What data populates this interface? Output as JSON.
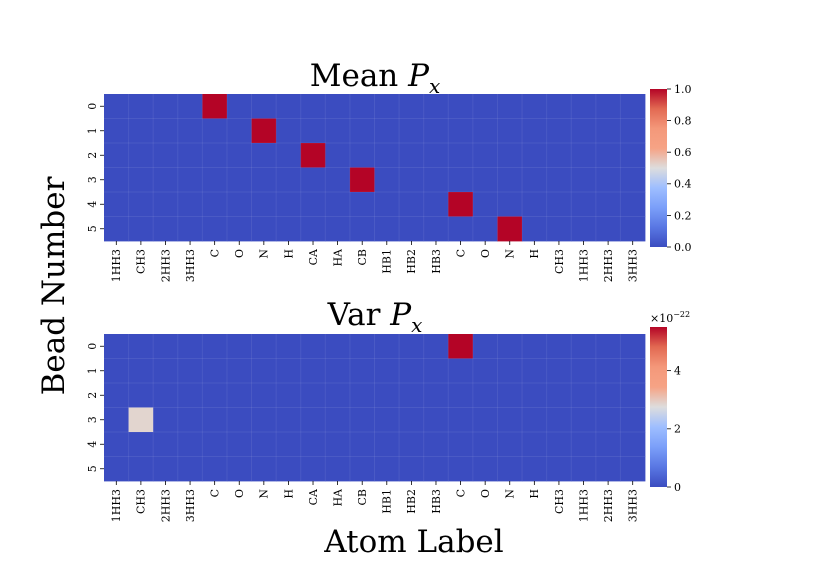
{
  "figure": {
    "ylabel": "Bead Number",
    "xlabel": "Atom Label"
  },
  "chart_data": [
    {
      "type": "heatmap",
      "title": "Mean ",
      "title_symbol": "P",
      "title_subscript": "x",
      "colormap": "coolwarm",
      "x_tick_labels": [
        "1HH3",
        "CH3",
        "2HH3",
        "3HH3",
        "C",
        "O",
        "N",
        "H",
        "CA",
        "HA",
        "CB",
        "HB1",
        "HB2",
        "HB3",
        "C",
        "O",
        "N",
        "H",
        "CH3",
        "1HH3",
        "2HH3",
        "3HH3"
      ],
      "y_tick_labels": [
        "0",
        "1",
        "2",
        "3",
        "4",
        "5"
      ],
      "vmin": 0.0,
      "vmax": 1.0,
      "colorbar_ticks": [
        "0.0",
        "0.2",
        "0.4",
        "0.6",
        "0.8",
        "1.0"
      ],
      "colorbar_tick_values": [
        0.0,
        0.2,
        0.4,
        0.6,
        0.8,
        1.0
      ],
      "colorbar_exponent": "",
      "cells": [
        {
          "row": 0,
          "col": 4,
          "value": 1.0
        },
        {
          "row": 1,
          "col": 6,
          "value": 1.0
        },
        {
          "row": 2,
          "col": 8,
          "value": 1.0
        },
        {
          "row": 3,
          "col": 10,
          "value": 1.0
        },
        {
          "row": 4,
          "col": 14,
          "value": 1.0
        },
        {
          "row": 5,
          "col": 16,
          "value": 1.0
        }
      ],
      "default_value": 0.0
    },
    {
      "type": "heatmap",
      "title": "Var ",
      "title_symbol": "P",
      "title_subscript": "x",
      "colormap": "coolwarm",
      "x_tick_labels": [
        "1HH3",
        "CH3",
        "2HH3",
        "3HH3",
        "C",
        "O",
        "N",
        "H",
        "CA",
        "HA",
        "CB",
        "HB1",
        "HB2",
        "HB3",
        "C",
        "O",
        "N",
        "H",
        "CH3",
        "1HH3",
        "2HH3",
        "3HH3"
      ],
      "y_tick_labels": [
        "0",
        "1",
        "2",
        "3",
        "4",
        "5"
      ],
      "vmin": 0.0,
      "vmax": 5.5,
      "colorbar_ticks": [
        "0",
        "2",
        "4"
      ],
      "colorbar_tick_values": [
        0,
        2,
        4
      ],
      "colorbar_exponent": "×10",
      "colorbar_exponent_power": "−22",
      "cells": [
        {
          "row": 0,
          "col": 14,
          "value": 5.5
        },
        {
          "row": 3,
          "col": 1,
          "value": 2.9
        }
      ],
      "default_value": 0.0
    }
  ]
}
